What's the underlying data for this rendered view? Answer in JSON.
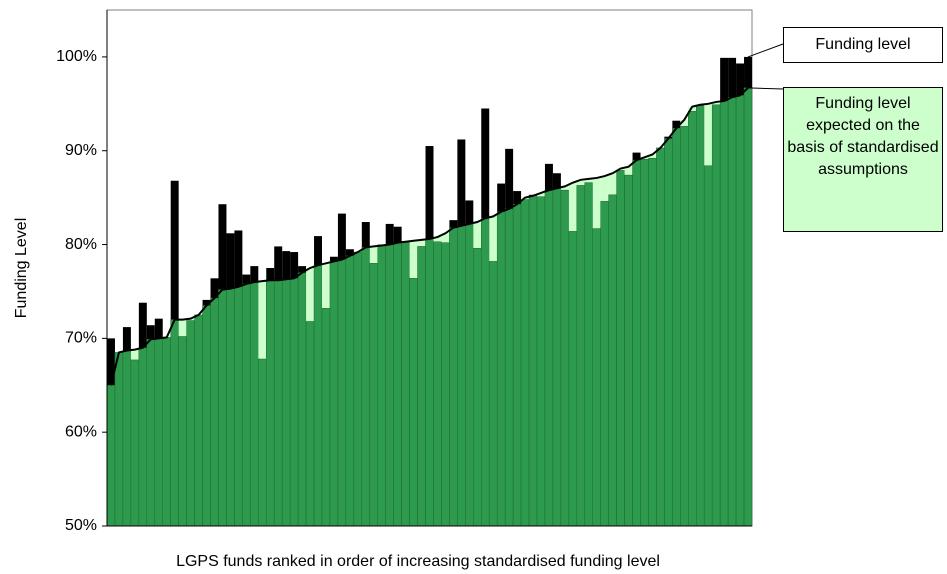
{
  "chart_data": {
    "type": "bar",
    "y_label": "Funding Level",
    "x_label": "LGPS funds ranked in order of increasing standardised funding level",
    "ylim": [
      50,
      105
    ],
    "yticks": [
      {
        "value": 50,
        "label": "50%"
      },
      {
        "value": 60,
        "label": "60%"
      },
      {
        "value": 70,
        "label": "70%"
      },
      {
        "value": 80,
        "label": "80%"
      },
      {
        "value": 90,
        "label": "90%"
      },
      {
        "value": 100,
        "label": "100%"
      }
    ],
    "bar_color": "#2e9a4e",
    "series": [
      {
        "name": "Funding level",
        "color": "#000000",
        "values": [
          70,
          68.5,
          71.2,
          67.7,
          73.8,
          71.4,
          72.1,
          70.1,
          86.8,
          70.2,
          71.9,
          72.5,
          74.1,
          76.4,
          84.3,
          81.2,
          81.5,
          76.8,
          77.7,
          67.8,
          77.5,
          79.8,
          79.3,
          79.2,
          77.7,
          71.8,
          80.9,
          73.2,
          78.7,
          83.3,
          79.5,
          79.2,
          82.4,
          78,
          80,
          82.2,
          81.9,
          80.3,
          76.4,
          79.8,
          90.5,
          80.3,
          80.2,
          82.6,
          91.2,
          84.7,
          79.6,
          94.5,
          78.2,
          86.5,
          90.2,
          85.7,
          84.8,
          85.3,
          85.1,
          88.6,
          87.6,
          85.8,
          81.4,
          86.3,
          86.6,
          81.7,
          84.6,
          85.3,
          87.9,
          87.4,
          89.8,
          89.1,
          89.2,
          90.3,
          91.5,
          93.2,
          92.6,
          94.2,
          94.8,
          88.4,
          94.9,
          99.9,
          99.9,
          99.3,
          100
        ]
      },
      {
        "name": "Funding level expected on the basis of standardised assumptions",
        "color": "#ccffcc",
        "values": [
          65,
          68.5,
          68.7,
          68.8,
          69,
          69.9,
          70,
          70.1,
          72,
          72,
          72.1,
          72.5,
          73.5,
          74.3,
          75.2,
          75.3,
          75.5,
          75.8,
          76,
          76.1,
          76.2,
          76.2,
          76.3,
          76.4,
          77,
          77.5,
          77.8,
          78,
          78.2,
          78.4,
          78.8,
          79.2,
          79.7,
          79.8,
          79.9,
          80,
          80.2,
          80.3,
          80.4,
          80.5,
          80.6,
          80.8,
          81.2,
          81.8,
          82,
          82.2,
          82.4,
          82.8,
          83,
          83.5,
          83.8,
          84.3,
          85,
          85.2,
          85.5,
          85.8,
          86,
          86.2,
          86.6,
          86.9,
          87,
          87.1,
          87.3,
          87.6,
          88.1,
          88.3,
          89,
          89.3,
          89.6,
          90.3,
          91.3,
          92.4,
          93.3,
          94.7,
          94.9,
          95,
          95.2,
          95.3,
          95.7,
          95.9,
          96.7
        ]
      }
    ]
  }
}
